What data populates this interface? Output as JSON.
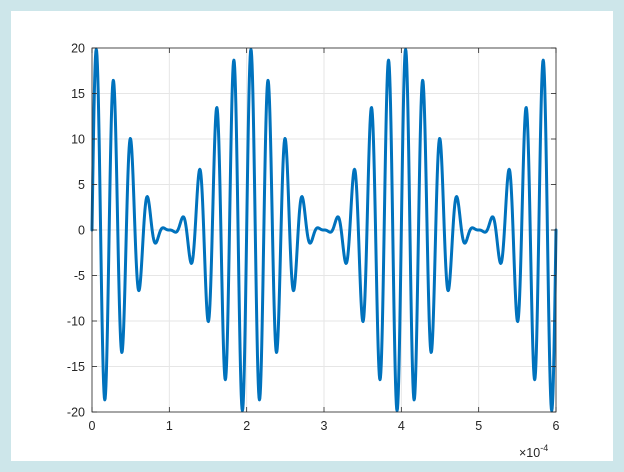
{
  "colors": {
    "background": "#cde6ea",
    "figure": "#ffffff",
    "line": "#0072bd",
    "grid": "#e6e6e6",
    "axis": "#262626"
  },
  "chart_data": {
    "type": "line",
    "title": "",
    "xlabel": "",
    "ylabel": "",
    "xlim": [
      0,
      6
    ],
    "ylim": [
      -20,
      20
    ],
    "x_ticks": [
      0,
      1,
      2,
      3,
      4,
      5,
      6
    ],
    "y_ticks": [
      -20,
      -15,
      -10,
      -5,
      0,
      5,
      10,
      15,
      20
    ],
    "x_tick_labels": [
      "0",
      "1",
      "2",
      "3",
      "4",
      "5",
      "6"
    ],
    "y_tick_labels": [
      "-20",
      "-15",
      "-10",
      "-5",
      "0",
      "5",
      "10",
      "15",
      "20"
    ],
    "x_exponent": {
      "base": "×10",
      "power": "-4"
    },
    "grid": true,
    "box": true,
    "series": [
      {
        "components": [
          {
            "amplitude": 10,
            "frequency": 45000
          },
          {
            "amplitude": 5,
            "frequency": 50000
          },
          {
            "amplitude": 5,
            "frequency": 40000
          }
        ],
        "x_scale": 0.0001,
        "samples": 1200
      }
    ]
  }
}
